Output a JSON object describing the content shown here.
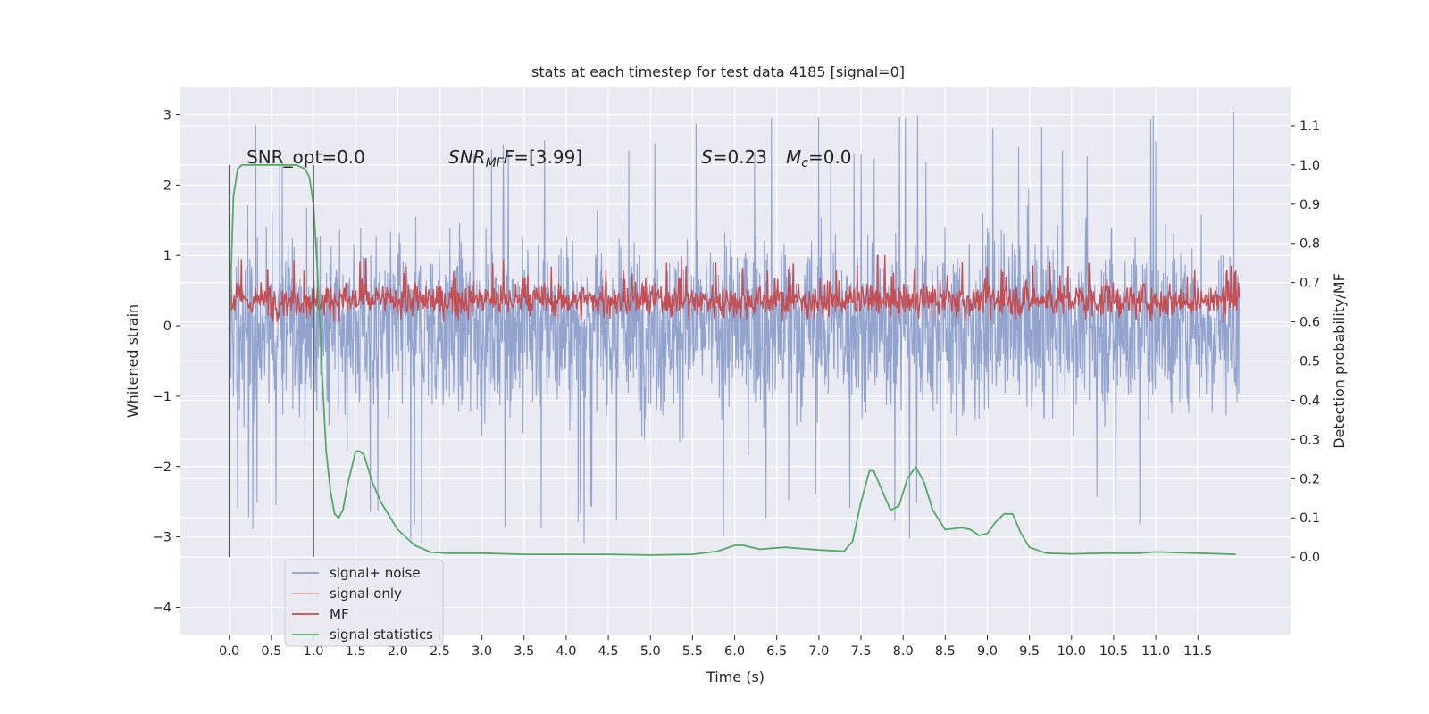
{
  "chart_data": {
    "type": "line",
    "title": "stats at each timestep for test data 4185 [signal=0]",
    "xlabel": "Time (s)",
    "ylabel": "Whitened strain",
    "ylabel_right": "Detection probability/MF",
    "xlim": [
      -0.58,
      12.6
    ],
    "ylim": [
      -4.4,
      3.4
    ],
    "ylim_right": [
      -0.2,
      1.2
    ],
    "xticks": [
      "0.0",
      "0.5",
      "1.0",
      "1.5",
      "2.0",
      "2.5",
      "3.0",
      "3.5",
      "4.0",
      "4.5",
      "5.0",
      "5.5",
      "6.0",
      "6.5",
      "7.0",
      "7.5",
      "8.0",
      "8.5",
      "9.0",
      "9.5",
      "10.0",
      "10.5",
      "11.0",
      "11.5"
    ],
    "yticks": [
      "3",
      "2",
      "1",
      "0",
      "−1",
      "−2",
      "−3",
      "−4"
    ],
    "yticks_right": [
      "1.1",
      "1.0",
      "0.9",
      "0.8",
      "0.7",
      "0.6",
      "0.5",
      "0.4",
      "0.3",
      "0.2",
      "0.1",
      "0.0"
    ],
    "grid": true,
    "legend_position": "lower-left",
    "annotations": {
      "snr_opt": "SNR_opt=0.0",
      "snr_mf": "=[3.99]",
      "snr_mf_symbol": "SNR",
      "snr_mf_subscript": "MF",
      "s_value": "=0.23",
      "s_symbol": "S",
      "mc_value": "=0.0",
      "mc_symbol": "M",
      "mc_subscript": "c"
    },
    "vertical_markers": [
      0.0,
      1.0
    ],
    "series": [
      {
        "name": "signal+ noise",
        "color": "#8da0cb",
        "axis": "left",
        "summary": "dense whitened-strain noise, mostly within [-2, 2], spikes to about ±3.1",
        "typical_range": [
          -2.0,
          2.0
        ],
        "extremes": [
          -3.4,
          3.1
        ]
      },
      {
        "name": "signal only",
        "color": "#e8a98a",
        "axis": "left",
        "values": []
      },
      {
        "name": "MF",
        "color": "#c44e52",
        "axis": "right",
        "summary": "matched-filter output fluctuating between about 0.6 and 0.75, peaking near 0.77",
        "typical_range": [
          0.6,
          0.72
        ],
        "extremes": [
          0.6,
          0.77
        ]
      },
      {
        "name": "signal statistics",
        "color": "#55a868",
        "axis": "right",
        "x": [
          0.0,
          0.05,
          0.1,
          0.15,
          0.2,
          0.3,
          0.5,
          0.7,
          0.8,
          0.9,
          0.95,
          1.0,
          1.05,
          1.1,
          1.15,
          1.2,
          1.25,
          1.3,
          1.35,
          1.4,
          1.5,
          1.55,
          1.6,
          1.7,
          1.8,
          2.0,
          2.2,
          2.4,
          2.6,
          3.0,
          3.5,
          4.0,
          4.5,
          5.0,
          5.5,
          5.8,
          6.0,
          6.1,
          6.3,
          6.6,
          7.0,
          7.3,
          7.4,
          7.5,
          7.6,
          7.65,
          7.75,
          7.85,
          7.95,
          8.05,
          8.15,
          8.25,
          8.35,
          8.5,
          8.7,
          8.8,
          8.9,
          9.0,
          9.1,
          9.2,
          9.3,
          9.4,
          9.5,
          9.7,
          10.0,
          10.4,
          10.8,
          11.0,
          11.5,
          11.95
        ],
        "values": [
          0.58,
          0.92,
          0.99,
          1.0,
          1.0,
          1.0,
          1.0,
          1.0,
          1.0,
          0.99,
          0.97,
          0.9,
          0.72,
          0.48,
          0.27,
          0.17,
          0.11,
          0.1,
          0.12,
          0.18,
          0.27,
          0.27,
          0.26,
          0.19,
          0.14,
          0.07,
          0.03,
          0.012,
          0.01,
          0.01,
          0.007,
          0.007,
          0.007,
          0.005,
          0.007,
          0.015,
          0.03,
          0.03,
          0.02,
          0.025,
          0.018,
          0.015,
          0.04,
          0.14,
          0.22,
          0.22,
          0.17,
          0.12,
          0.13,
          0.2,
          0.23,
          0.19,
          0.12,
          0.07,
          0.075,
          0.07,
          0.055,
          0.06,
          0.09,
          0.11,
          0.11,
          0.06,
          0.025,
          0.01,
          0.008,
          0.01,
          0.01,
          0.013,
          0.01,
          0.007
        ]
      }
    ]
  }
}
